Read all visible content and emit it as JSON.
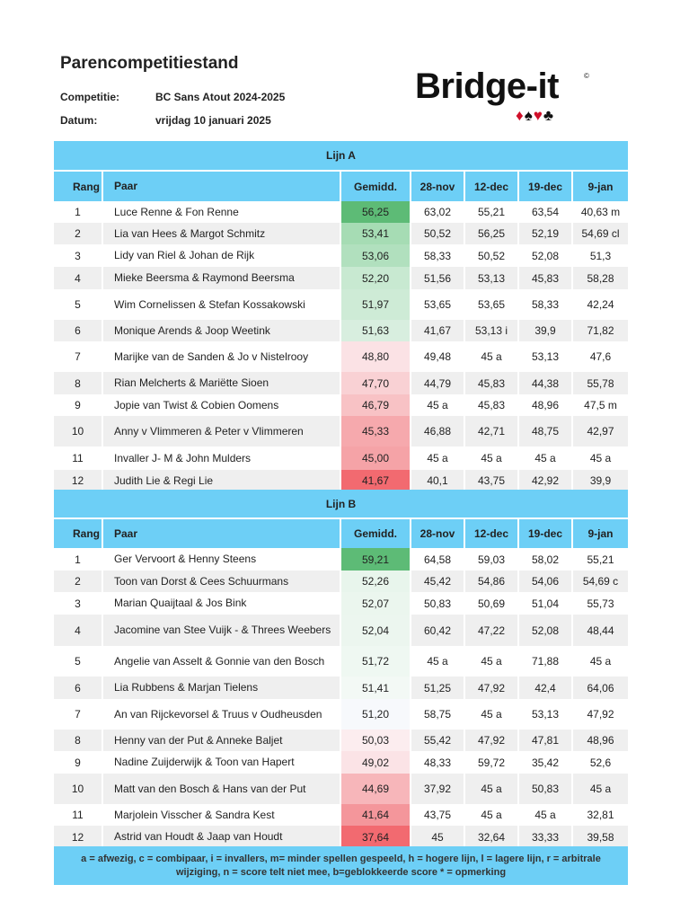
{
  "page": {
    "title": "Parencompetitiestand",
    "competition_label": "Competitie:",
    "competition_value": "BC Sans Atout 2024-2025",
    "date_label": "Datum:",
    "date_value": "vrijdag 10 januari 2025"
  },
  "logo": {
    "text": "Bridge-it",
    "mark": "©",
    "suits": [
      "♦",
      "♠",
      "♥",
      "♣"
    ]
  },
  "columns": [
    "Rang",
    "Paar",
    "Gemidd.",
    "28-nov",
    "12-dec",
    "19-dec",
    "9-jan"
  ],
  "lines": [
    {
      "title": "Lijn A",
      "rows": [
        {
          "rang": "1",
          "paar": "Luce Renne & Fon Renne",
          "gem": "56,25",
          "color": "#5dbb76",
          "scores": [
            "63,02",
            "55,21",
            "63,54",
            "40,63 m"
          ]
        },
        {
          "rang": "2",
          "paar": "Lia van  Hees & Margot Schmitz",
          "gem": "53,41",
          "color": "#a6dcb4",
          "scores": [
            "50,52",
            "56,25",
            "52,19",
            "54,69 cl"
          ]
        },
        {
          "rang": "3",
          "paar": "Lidy van Riel & Johan de Rijk",
          "gem": "53,06",
          "color": "#b1e0be",
          "scores": [
            "58,33",
            "50,52",
            "52,08",
            "51,3"
          ]
        },
        {
          "rang": "4",
          "paar": "Mieke Beersma & Raymond Beersma",
          "gem": "52,20",
          "color": "#c8e9d1",
          "scores": [
            "51,56",
            "53,13",
            "45,83",
            "58,28"
          ]
        },
        {
          "rang": "5",
          "paar": "Wim Cornelissen & Stefan Kossakowski",
          "gem": "51,97",
          "color": "#ceebd6",
          "scores": [
            "53,65",
            "53,65",
            "58,33",
            "42,24"
          ]
        },
        {
          "rang": "6",
          "paar": "Monique Arends & Joop Weetink",
          "gem": "51,63",
          "color": "#d8eedf",
          "scores": [
            "41,67",
            "53,13 i",
            "39,9",
            "71,82"
          ]
        },
        {
          "rang": "7",
          "paar": "Marijke van de Sanden & Jo v Nistelrooy",
          "gem": "48,80",
          "color": "#fbe2e5",
          "scores": [
            "49,48",
            "45 a",
            "53,13",
            "47,6"
          ]
        },
        {
          "rang": "8",
          "paar": "Rian Melcherts & Mariëtte Sioen",
          "gem": "47,70",
          "color": "#f9d1d4",
          "scores": [
            "44,79",
            "45,83",
            "44,38",
            "55,78"
          ]
        },
        {
          "rang": "9",
          "paar": "Jopie van Twist & Cobien Oomens",
          "gem": "46,79",
          "color": "#f8c2c5",
          "scores": [
            "45 a",
            "45,83",
            "48,96",
            "47,5 m"
          ]
        },
        {
          "rang": "10",
          "paar": "Anny v Vlimmeren & Peter v Vlimmeren",
          "gem": "45,33",
          "color": "#f6a9ad",
          "scores": [
            "46,88",
            "42,71",
            "48,75",
            "42,97"
          ]
        },
        {
          "rang": "11",
          "paar": "Invaller J- M & John Mulders",
          "gem": "45,00",
          "color": "#f5a3a7",
          "scores": [
            "45 a",
            "45 a",
            "45 a",
            "45 a"
          ]
        },
        {
          "rang": "12",
          "paar": "Judith Lie & Regi Lie",
          "gem": "41,67",
          "color": "#f26a70",
          "scores": [
            "40,1",
            "43,75",
            "42,92",
            "39,9"
          ]
        }
      ]
    },
    {
      "title": "Lijn B",
      "rows": [
        {
          "rang": "1",
          "paar": "Ger Vervoort & Henny Steens",
          "gem": "59,21",
          "color": "#5dbb76",
          "scores": [
            "64,58",
            "59,03",
            "58,02",
            "55,21"
          ]
        },
        {
          "rang": "2",
          "paar": "Toon van Dorst & Cees Schuurmans",
          "gem": "52,26",
          "color": "#e8f5ec",
          "scores": [
            "45,42",
            "54,86",
            "54,06",
            "54,69 c"
          ]
        },
        {
          "rang": "3",
          "paar": "Marian Quaijtaal & Jos Bink",
          "gem": "52,07",
          "color": "#ebf6ee",
          "scores": [
            "50,83",
            "50,69",
            "51,04",
            "55,73"
          ]
        },
        {
          "rang": "4",
          "paar": "Jacomine van Stee Vuijk - & Threes Weebers",
          "gem": "52,04",
          "color": "#ecf6ef",
          "scores": [
            "60,42",
            "47,22",
            "52,08",
            "48,44"
          ]
        },
        {
          "rang": "5",
          "paar": "Angelie van Asselt & Gonnie van den Bosch",
          "gem": "51,72",
          "color": "#eff8f2",
          "scores": [
            "45 a",
            "45 a",
            "71,88",
            "45 a"
          ]
        },
        {
          "rang": "6",
          "paar": "Lia Rubbens & Marjan Tielens",
          "gem": "51,41",
          "color": "#f3f9f5",
          "scores": [
            "51,25",
            "47,92",
            "42,4",
            "64,06"
          ]
        },
        {
          "rang": "7",
          "paar": "An van Rijckevorsel & Truus v Oudheusden",
          "gem": "51,20",
          "color": "#f7f9fc",
          "scores": [
            "58,75",
            "45 a",
            "53,13",
            "47,92"
          ]
        },
        {
          "rang": "8",
          "paar": "Henny van der Put & Anneke Baljet",
          "gem": "50,03",
          "color": "#fcedef",
          "scores": [
            "55,42",
            "47,92",
            "47,81",
            "48,96"
          ]
        },
        {
          "rang": "9",
          "paar": "Nadine Zuijderwijk & Toon van Hapert",
          "gem": "49,02",
          "color": "#fbe3e6",
          "scores": [
            "48,33",
            "59,72",
            "35,42",
            "52,6"
          ]
        },
        {
          "rang": "10",
          "paar": "Matt van den Bosch & Hans van der Put",
          "gem": "44,69",
          "color": "#f7b6ba",
          "scores": [
            "37,92",
            "45 a",
            "50,83",
            "45 a"
          ]
        },
        {
          "rang": "11",
          "paar": "Marjolein Visscher & Sandra Kest",
          "gem": "41,64",
          "color": "#f4969b",
          "scores": [
            "43,75",
            "45 a",
            "45 a",
            "32,81"
          ]
        },
        {
          "rang": "12",
          "paar": "Astrid van Houdt & Jaap van  Houdt",
          "gem": "37,64",
          "color": "#f26a70",
          "scores": [
            "45",
            "32,64",
            "33,33",
            "39,58"
          ]
        }
      ]
    }
  ],
  "footer": "a = afwezig, c = combipaar, i = invallers, m= minder spellen gespeeld, h = hogere lijn, l = lagere lijn, r = arbitrale wijziging, n = score telt niet mee, b=geblokkeerde score  * = opmerking"
}
